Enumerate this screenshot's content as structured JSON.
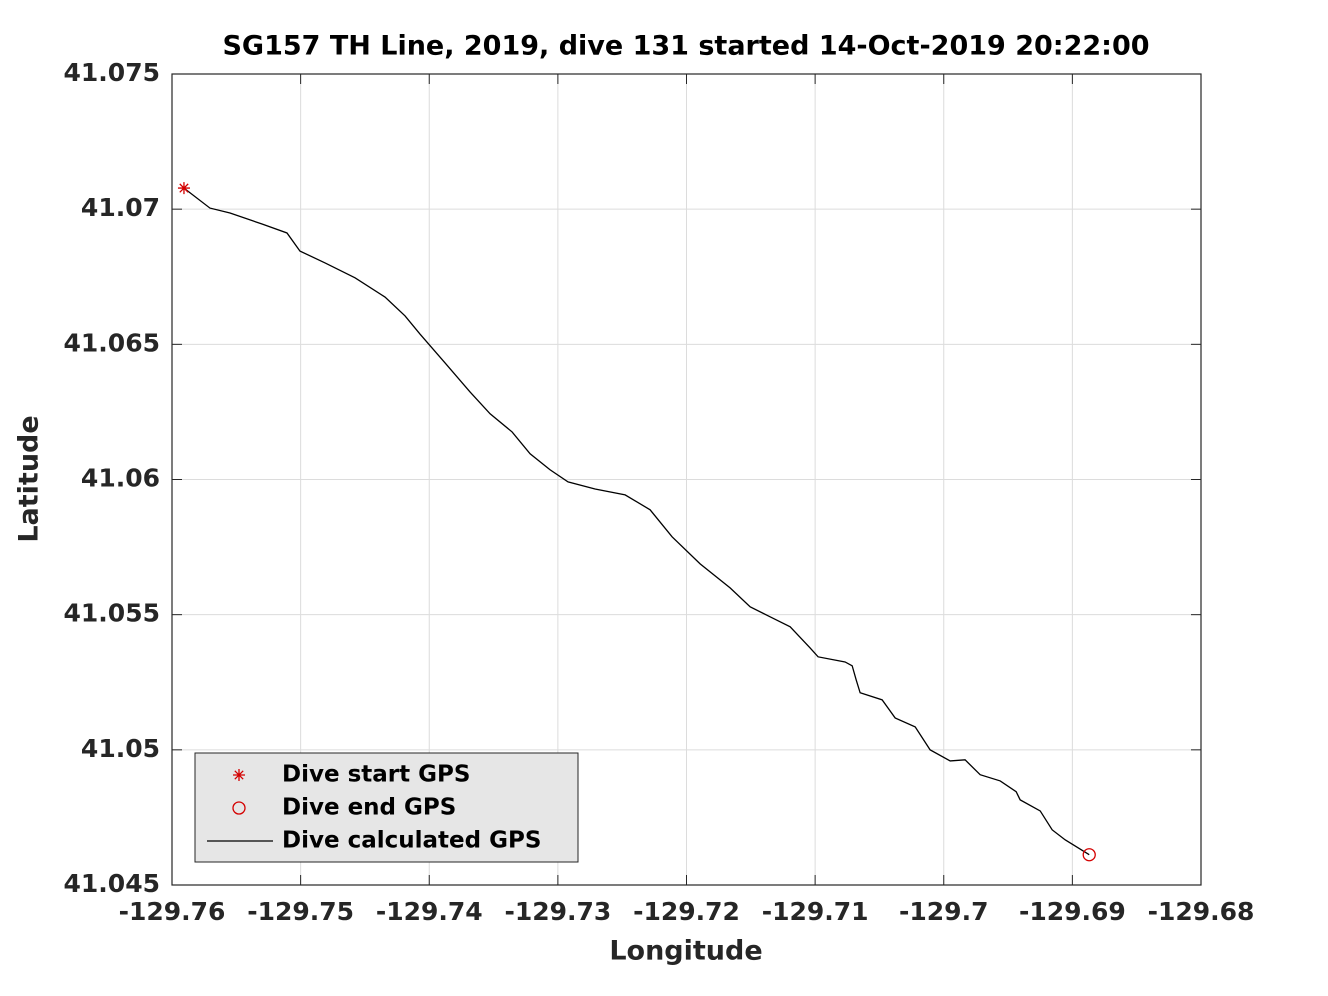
{
  "chart_data": {
    "type": "line",
    "title": "SG157 TH Line, 2019, dive 131 started 14-Oct-2019 20:22:00",
    "xlabel": "Longitude",
    "ylabel": "Latitude",
    "xlim": [
      -129.76,
      -129.68
    ],
    "ylim": [
      41.045,
      41.075
    ],
    "xticks": [
      -129.76,
      -129.75,
      -129.74,
      -129.73,
      -129.72,
      -129.71,
      -129.7,
      -129.69,
      -129.68
    ],
    "yticks": [
      41.045,
      41.05,
      41.055,
      41.06,
      41.065,
      41.07,
      41.075
    ],
    "grid": true,
    "legend": "lower left",
    "series": [
      {
        "name": "Dive start GPS",
        "color": "#d40000",
        "marker": "*",
        "x": [
          -129.75907
        ],
        "values": [
          41.07078
        ]
      },
      {
        "name": "Dive end GPS",
        "color": "#d40000",
        "marker": "o",
        "x": [
          -129.68869
        ],
        "values": [
          41.04612
        ]
      },
      {
        "name": "Dive calculated GPS",
        "color": "#000000",
        "marker": "line",
        "x": [
          -129.75907,
          -129.75705,
          -129.75549,
          -129.753,
          -129.75106,
          -129.75005,
          -129.7481,
          -129.74577,
          -129.74344,
          -129.74188,
          -129.74072,
          -129.73877,
          -129.73683,
          -129.73527,
          -129.73356,
          -129.73216,
          -129.73061,
          -129.72921,
          -129.72711,
          -129.72477,
          -129.72283,
          -129.72112,
          -129.71894,
          -129.71661,
          -129.71505,
          -129.7135,
          -129.71194,
          -129.71039,
          -129.70977,
          -129.70767,
          -129.70712,
          -129.70681,
          -129.7065,
          -129.70479,
          -129.70378,
          -129.70222,
          -129.70106,
          -129.6995,
          -129.69834,
          -129.69717,
          -129.69561,
          -129.69437,
          -129.69406,
          -129.6925,
          -129.69157,
          -129.69056,
          -129.68869
        ],
        "values": [
          41.07078,
          41.07004,
          41.06986,
          41.06945,
          41.06912,
          41.06845,
          41.06801,
          41.06746,
          41.06675,
          41.06605,
          41.06538,
          41.06431,
          41.06324,
          41.06243,
          41.06176,
          41.06095,
          41.06036,
          41.05991,
          41.05965,
          41.05943,
          41.05888,
          41.05788,
          41.05688,
          41.05599,
          41.05529,
          41.05492,
          41.05455,
          41.05377,
          41.05344,
          41.05325,
          41.05311,
          41.05259,
          41.05211,
          41.05185,
          41.05118,
          41.05085,
          41.05,
          41.04959,
          41.04963,
          41.04908,
          41.04885,
          41.04845,
          41.04815,
          41.04774,
          41.04704,
          41.04667,
          41.04612
        ]
      }
    ]
  }
}
